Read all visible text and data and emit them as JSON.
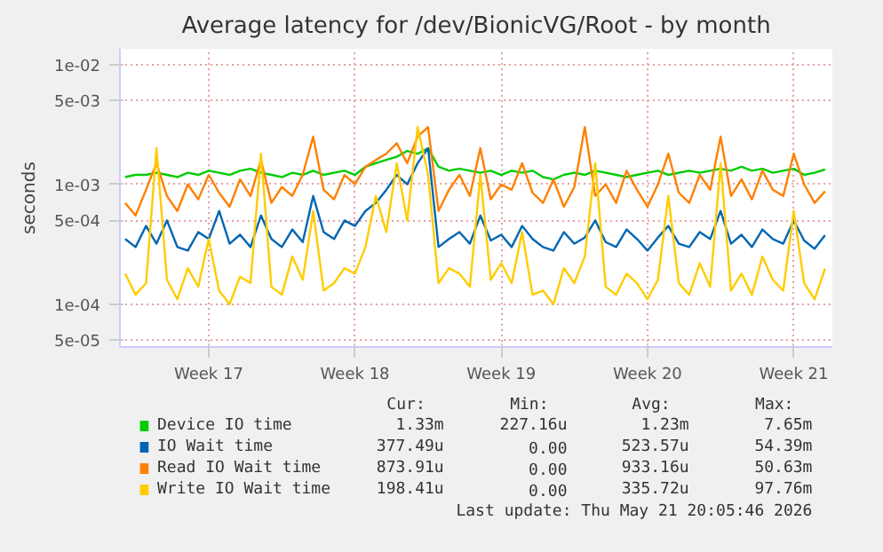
{
  "chart_data": {
    "type": "line",
    "title": "Average latency for /dev/BionicVG/Root - by month",
    "ylabel": "seconds",
    "log": "y",
    "categories": [
      null,
      null,
      null,
      null,
      null,
      null,
      null,
      null,
      "Week 17",
      null,
      null,
      null,
      null,
      null,
      null,
      null,
      null,
      null,
      null,
      null,
      null,
      null,
      "Week 18",
      null,
      null,
      null,
      null,
      null,
      null,
      null,
      null,
      null,
      null,
      null,
      null,
      null,
      "Week 19",
      null,
      null,
      null,
      null,
      null,
      null,
      null,
      null,
      null,
      null,
      null,
      null,
      null,
      "Week 20",
      null,
      null,
      null,
      null,
      null,
      null,
      null,
      null,
      null,
      null,
      null,
      null,
      null,
      "Week 21",
      null,
      null,
      null
    ],
    "ylim": [
      4.4e-05,
      0.0135
    ],
    "yticks": [
      {
        "value": 5e-05,
        "label": "5e-05"
      },
      {
        "value": 0.0001,
        "label": "1e-04"
      },
      {
        "value": 0.0005,
        "label": "5e-04"
      },
      {
        "value": 0.001,
        "label": "1e-03"
      },
      {
        "value": 0.005,
        "label": "5e-03"
      },
      {
        "value": 0.01,
        "label": "1e-02"
      }
    ],
    "grid": true,
    "legend": "bottom",
    "series": [
      {
        "name": "Device IO time",
        "color": "#00cc00",
        "values": [
          0.00115,
          0.0012,
          0.0012,
          0.00125,
          0.0012,
          0.00115,
          0.00125,
          0.0012,
          0.0013,
          0.00125,
          0.0012,
          0.0013,
          0.00135,
          0.00125,
          0.0012,
          0.00115,
          0.00125,
          0.0012,
          0.0013,
          0.0012,
          0.00125,
          0.0013,
          0.0012,
          0.0014,
          0.0015,
          0.0016,
          0.0017,
          0.0019,
          0.0018,
          0.002,
          0.0014,
          0.0013,
          0.00135,
          0.0013,
          0.00125,
          0.0013,
          0.0012,
          0.0013,
          0.00125,
          0.0013,
          0.00115,
          0.0011,
          0.0012,
          0.00125,
          0.0012,
          0.0013,
          0.00125,
          0.0012,
          0.00115,
          0.0012,
          0.00125,
          0.0013,
          0.0012,
          0.00125,
          0.0013,
          0.00125,
          0.0013,
          0.00135,
          0.0013,
          0.0014,
          0.0013,
          0.00135,
          0.00125,
          0.0013,
          0.00135,
          0.0012,
          0.00125,
          0.00133
        ]
      },
      {
        "name": "IO Wait time",
        "color": "#0066b3",
        "values": [
          0.00035,
          0.0003,
          0.00045,
          0.00032,
          0.0005,
          0.0003,
          0.00028,
          0.0004,
          0.00035,
          0.0006,
          0.00032,
          0.00038,
          0.0003,
          0.00055,
          0.00035,
          0.0003,
          0.00042,
          0.00033,
          0.0008,
          0.0004,
          0.00035,
          0.0005,
          0.00045,
          0.0006,
          0.0007,
          0.0009,
          0.0012,
          0.001,
          0.0015,
          0.002,
          0.0003,
          0.00035,
          0.0004,
          0.00032,
          0.00055,
          0.00034,
          0.00038,
          0.0003,
          0.00045,
          0.00035,
          0.0003,
          0.00028,
          0.0004,
          0.00032,
          0.00036,
          0.0005,
          0.00033,
          0.0003,
          0.00042,
          0.00035,
          0.00028,
          0.00036,
          0.00045,
          0.00032,
          0.0003,
          0.0004,
          0.00035,
          0.0006,
          0.00032,
          0.00038,
          0.0003,
          0.00042,
          0.00035,
          0.00032,
          0.0005,
          0.00034,
          0.00029,
          0.000377
        ]
      },
      {
        "name": "Read IO Wait time",
        "color": "#ff8000",
        "values": [
          0.0007,
          0.00055,
          0.0009,
          0.0015,
          0.0008,
          0.0006,
          0.001,
          0.00075,
          0.0012,
          0.00085,
          0.00065,
          0.0011,
          0.0008,
          0.0016,
          0.0007,
          0.00095,
          0.0008,
          0.0012,
          0.0025,
          0.0009,
          0.00075,
          0.0012,
          0.001,
          0.0014,
          0.0016,
          0.0018,
          0.0022,
          0.0015,
          0.0025,
          0.003,
          0.0006,
          0.0009,
          0.0012,
          0.0008,
          0.002,
          0.00075,
          0.001,
          0.0009,
          0.0015,
          0.00085,
          0.0007,
          0.0011,
          0.00065,
          0.00095,
          0.003,
          0.0008,
          0.001,
          0.0007,
          0.0013,
          0.0009,
          0.00065,
          0.001,
          0.0018,
          0.00085,
          0.0007,
          0.0012,
          0.0009,
          0.0025,
          0.0008,
          0.0011,
          0.00075,
          0.0013,
          0.0009,
          0.0008,
          0.0018,
          0.001,
          0.0007,
          0.000874
        ]
      },
      {
        "name": "Write IO Wait time",
        "color": "#ffcc00",
        "values": [
          0.00018,
          0.00012,
          0.00015,
          0.002,
          0.00016,
          0.00011,
          0.0002,
          0.00014,
          0.00035,
          0.00013,
          0.0001,
          0.00017,
          0.00015,
          0.0018,
          0.00014,
          0.00012,
          0.00025,
          0.00016,
          0.0006,
          0.00013,
          0.00015,
          0.0002,
          0.00018,
          0.0003,
          0.0008,
          0.0004,
          0.0015,
          0.0005,
          0.003,
          0.0012,
          0.00015,
          0.0002,
          0.00018,
          0.00014,
          0.0012,
          0.00016,
          0.00022,
          0.00015,
          0.0004,
          0.00012,
          0.00013,
          0.0001,
          0.0002,
          0.00015,
          0.00025,
          0.0015,
          0.00014,
          0.00012,
          0.00018,
          0.00015,
          0.00011,
          0.00016,
          0.0008,
          0.00015,
          0.00012,
          0.00022,
          0.00014,
          0.0015,
          0.00013,
          0.00018,
          0.00012,
          0.00025,
          0.00016,
          0.00013,
          0.0006,
          0.00015,
          0.00011,
          0.000198
        ]
      }
    ],
    "annotations": [
      "Cur:",
      "Min:",
      "Avg:",
      "Max:",
      "1.33m",
      "227.16u",
      "1.23m",
      "7.65m",
      "377.49u",
      "0.00",
      "523.57u",
      "54.39m",
      "873.91u",
      "0.00",
      "933.16u",
      "50.63m",
      "198.41u",
      "0.00",
      "335.72u",
      "97.76m",
      "Last update: Thu May 21 20:05:46 2026"
    ]
  }
}
